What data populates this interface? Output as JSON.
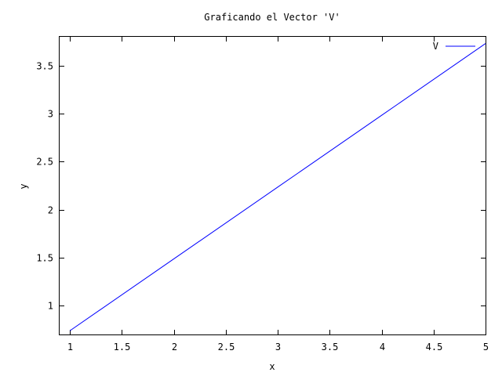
{
  "chart_data": {
    "type": "line",
    "title": "Graficando el Vector 'V'",
    "xlabel": "x",
    "ylabel": "y",
    "xlim": [
      0.9,
      5
    ],
    "ylim": [
      0.7,
      3.8
    ],
    "x_ticks": [
      1,
      1.5,
      2,
      2.5,
      3,
      3.5,
      4,
      4.5,
      5
    ],
    "x_tick_labels": [
      "1",
      "1.5",
      "2",
      "2.5",
      "3",
      "3.5",
      "4",
      "4.5",
      "5"
    ],
    "y_ticks": [
      1,
      1.5,
      2,
      2.5,
      3,
      3.5
    ],
    "y_tick_labels": [
      "1",
      "1.5",
      "2",
      "2.5",
      "3",
      "3.5"
    ],
    "grid": false,
    "legend_position": "top-right",
    "series": [
      {
        "name": "V",
        "color": "#0000ff",
        "x": [
          1,
          2,
          3,
          4,
          5
        ],
        "y": [
          0.74,
          1.4875,
          2.235,
          2.9825,
          3.73
        ]
      }
    ]
  }
}
